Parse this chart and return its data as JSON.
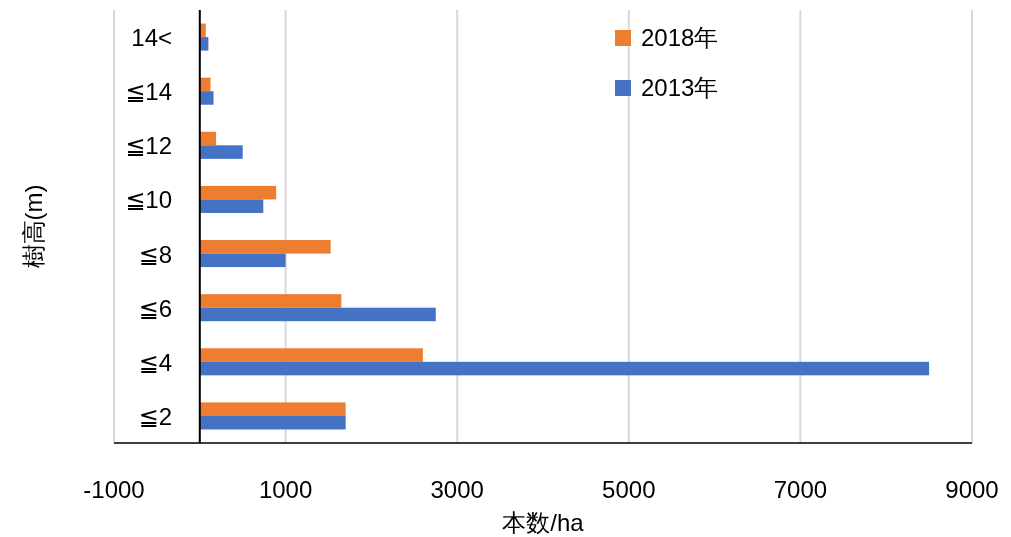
{
  "chart_data": {
    "type": "bar",
    "orientation": "horizontal",
    "xlabel": "本数/ha",
    "ylabel": "樹高(m)",
    "categories": [
      "14<",
      "≦14",
      "≦12",
      "≦10",
      "≦8",
      "≦6",
      "≦4",
      "≦2"
    ],
    "series": [
      {
        "name": "2018年",
        "color": "#ed7d31",
        "values": [
          70,
          125,
          190,
          890,
          1525,
          1650,
          2600,
          1700
        ]
      },
      {
        "name": "2013年",
        "color": "#4472c4",
        "values": [
          100,
          160,
          500,
          740,
          1000,
          2750,
          8500,
          1700
        ]
      }
    ],
    "xlim": [
      -1000,
      9000
    ],
    "xticks": [
      -1000,
      1000,
      3000,
      5000,
      7000,
      9000
    ],
    "grid": "x",
    "legend": "top right"
  }
}
